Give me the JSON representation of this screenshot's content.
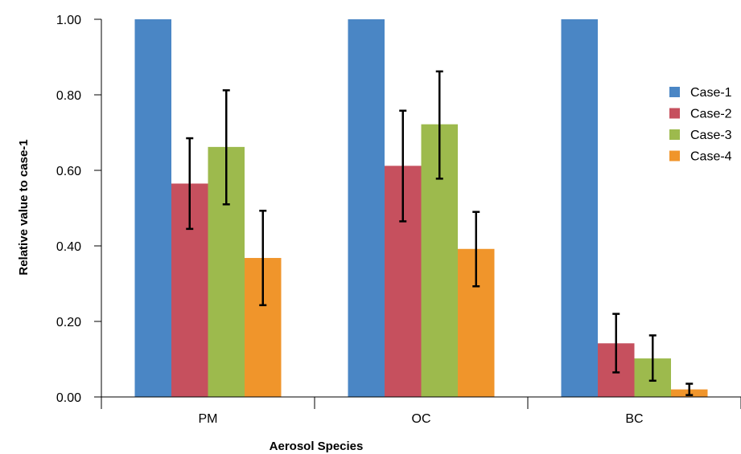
{
  "chart_data": {
    "type": "bar",
    "title": "",
    "xlabel": "Aerosol Species",
    "ylabel": "Relative value to case-1",
    "categories": [
      "PM",
      "OC",
      "BC"
    ],
    "ylim": [
      0,
      1.0
    ],
    "yticks": [
      "0.00",
      "0.20",
      "0.40",
      "0.60",
      "0.80",
      "1.00"
    ],
    "ytick_values": [
      0,
      0.2,
      0.4,
      0.6,
      0.8,
      1.0
    ],
    "grid": false,
    "legend_position": "right",
    "series": [
      {
        "name": "Case-1",
        "color": "#4a86c5",
        "values": [
          1.0,
          1.0,
          1.0
        ],
        "err_low": [
          null,
          null,
          null
        ],
        "err_high": [
          null,
          null,
          null
        ]
      },
      {
        "name": "Case-2",
        "color": "#c6505e",
        "values": [
          0.565,
          0.612,
          0.142
        ],
        "err_low": [
          0.445,
          0.465,
          0.065
        ],
        "err_high": [
          0.685,
          0.758,
          0.22
        ]
      },
      {
        "name": "Case-3",
        "color": "#9dba4d",
        "values": [
          0.662,
          0.722,
          0.102
        ],
        "err_low": [
          0.51,
          0.578,
          0.043
        ],
        "err_high": [
          0.812,
          0.862,
          0.163
        ]
      },
      {
        "name": "Case-4",
        "color": "#f0952b",
        "values": [
          0.368,
          0.392,
          0.02
        ],
        "err_low": [
          0.243,
          0.293,
          0.005
        ],
        "err_high": [
          0.493,
          0.49,
          0.035
        ]
      }
    ]
  }
}
